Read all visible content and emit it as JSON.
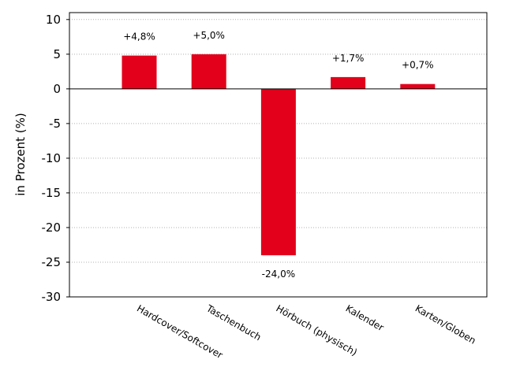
{
  "chart_data": {
    "type": "bar",
    "title": "",
    "xlabel": "",
    "ylabel": "in Prozent (%)",
    "categories": [
      "Hardcover/Softcover",
      "Taschenbuch",
      "Hörbuch (physisch)",
      "Kalender",
      "Karten/Globen"
    ],
    "values": [
      4.8,
      5.0,
      -24.0,
      1.7,
      0.7
    ],
    "data_labels": [
      "+4,8%",
      "+5,0%",
      "-24,0%",
      "+1,7%",
      "+0,7%"
    ],
    "ylim": [
      -30,
      11
    ],
    "yticks": [
      10,
      5,
      0,
      -5,
      -10,
      -15,
      -20,
      -25,
      -30
    ],
    "ytick_labels": [
      "10",
      "5",
      "0",
      "-5",
      "-10",
      "-15",
      "-20",
      "-25",
      "-30"
    ],
    "grid": "horizontal dotted",
    "bar_color": "#e2001a"
  }
}
